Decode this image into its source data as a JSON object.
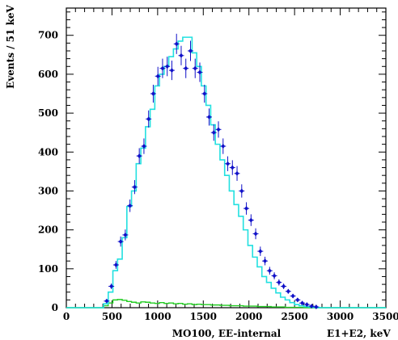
{
  "chart_data": {
    "type": "line",
    "title": "",
    "xlabel": "E1+E2, keV",
    "ylabel": "Events / 51 keV",
    "annotation": "MO100, EE-internal",
    "xlim": [
      0,
      3500
    ],
    "ylim": [
      0,
      770
    ],
    "bin_width": 51,
    "xticks": [
      0,
      500,
      1000,
      1500,
      2000,
      2500,
      3000,
      3500
    ],
    "yticks": [
      0,
      100,
      200,
      300,
      400,
      500,
      600,
      700
    ],
    "grid": false,
    "colors": {
      "data_points": "#1010c8",
      "total_model": "#22e0e0",
      "background_model": "#22cc22"
    },
    "series": [
      {
        "type": "errorbar",
        "x": [
          442,
          493,
          544,
          595,
          646,
          697,
          748,
          799,
          850,
          901,
          952,
          1003,
          1054,
          1105,
          1156,
          1207,
          1258,
          1309,
          1360,
          1411,
          1462,
          1513,
          1564,
          1615,
          1666,
          1717,
          1768,
          1819,
          1870,
          1921,
          1972,
          2023,
          2074,
          2125,
          2176,
          2227,
          2278,
          2329,
          2380,
          2431,
          2482,
          2533,
          2584,
          2635,
          2686,
          2737
        ],
        "y": [
          17,
          55,
          110,
          170,
          187,
          262,
          310,
          390,
          415,
          485,
          550,
          595,
          615,
          620,
          610,
          678,
          648,
          615,
          660,
          615,
          605,
          550,
          490,
          450,
          458,
          415,
          370,
          360,
          345,
          300,
          255,
          225,
          190,
          145,
          120,
          95,
          82,
          65,
          55,
          42,
          30,
          20,
          12,
          8,
          4,
          2
        ],
        "yerr": [
          4,
          7,
          10,
          13,
          14,
          16,
          18,
          20,
          20,
          22,
          23,
          24,
          25,
          25,
          25,
          26,
          25,
          25,
          26,
          25,
          25,
          23,
          22,
          21,
          21,
          20,
          19,
          19,
          19,
          17,
          16,
          15,
          14,
          12,
          11,
          10,
          9,
          8,
          7,
          6,
          5,
          4,
          3,
          3,
          2,
          1
        ]
      },
      {
        "type": "step",
        "x_edges": [
          0,
          51,
          102,
          153,
          204,
          255,
          306,
          357,
          408,
          459,
          510,
          561,
          612,
          663,
          714,
          765,
          816,
          867,
          918,
          969,
          1020,
          1071,
          1122,
          1173,
          1224,
          1275,
          1326,
          1377,
          1428,
          1479,
          1530,
          1581,
          1632,
          1683,
          1734,
          1785,
          1836,
          1887,
          1938,
          1989,
          2040,
          2091,
          2142,
          2193,
          2244,
          2295,
          2346,
          2397,
          2448,
          2499,
          2550,
          2601,
          2652,
          2703,
          2754,
          2805,
          2856,
          3500
        ],
        "values": [
          0,
          0,
          0,
          0,
          0,
          0,
          0,
          0,
          10,
          40,
          95,
          125,
          180,
          260,
          300,
          370,
          410,
          465,
          510,
          570,
          600,
          620,
          645,
          665,
          685,
          695,
          695,
          655,
          620,
          570,
          520,
          470,
          420,
          380,
          340,
          300,
          265,
          235,
          200,
          160,
          130,
          105,
          80,
          65,
          50,
          38,
          27,
          20,
          13,
          8,
          5,
          3,
          2,
          1,
          0,
          0,
          0
        ]
      },
      {
        "type": "step",
        "x_edges": [
          0,
          51,
          102,
          153,
          204,
          255,
          306,
          357,
          408,
          459,
          510,
          561,
          612,
          663,
          714,
          765,
          816,
          867,
          918,
          969,
          1020,
          1071,
          1122,
          1173,
          1224,
          1275,
          1326,
          1377,
          1428,
          1479,
          1530,
          1581,
          1632,
          1683,
          1734,
          1785,
          1836,
          1887,
          1938,
          1989,
          2040,
          2091,
          2142,
          2193,
          2244,
          2295,
          2346,
          2397,
          2448,
          2499,
          2550,
          2601,
          2652,
          2703,
          2754,
          2805,
          2856,
          3500
        ],
        "values": [
          0,
          0,
          0,
          0,
          0,
          0,
          0,
          0,
          5,
          12,
          20,
          21,
          19,
          16,
          14,
          12,
          15,
          14,
          12,
          11,
          13,
          11,
          12,
          10,
          11,
          9,
          10,
          8,
          9,
          8,
          8,
          7,
          7,
          6,
          6,
          5,
          5,
          5,
          4,
          4,
          4,
          3,
          3,
          3,
          2,
          2,
          2,
          1,
          1,
          1,
          1,
          0,
          0,
          0,
          0,
          0,
          0
        ]
      }
    ]
  }
}
